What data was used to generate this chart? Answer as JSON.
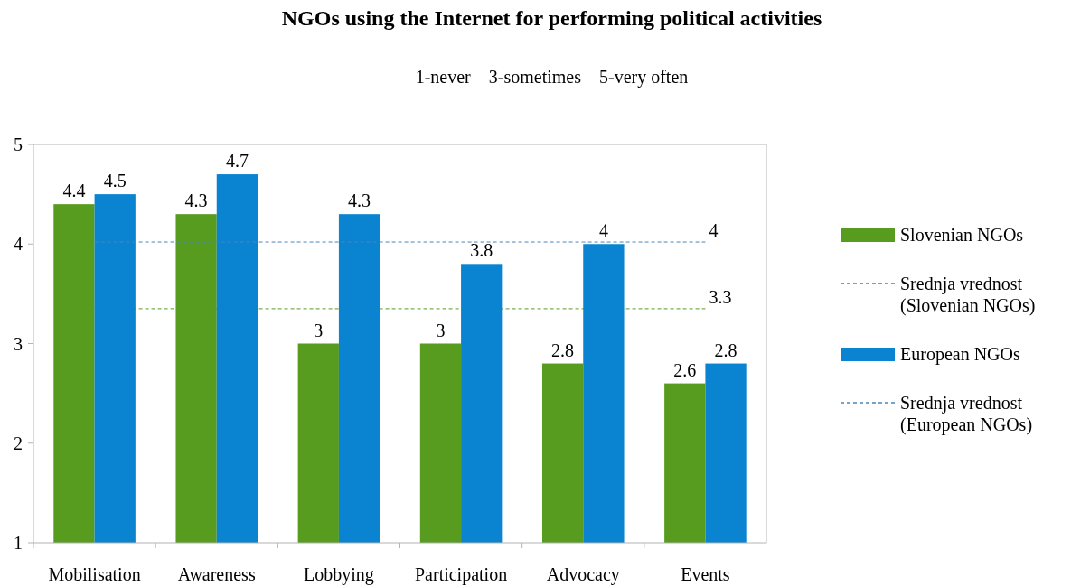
{
  "chart_data": {
    "type": "bar",
    "title": "NGOs using the Internet for performing political activities",
    "subtitle": "1-never    3-sometimes    5-very often",
    "categories": [
      "Mobilisation",
      "Awareness",
      "Lobbying",
      "Participation",
      "Advocacy",
      "Events"
    ],
    "series": [
      {
        "name": "Slovenian NGOs",
        "color": "#579b1f",
        "values": [
          4.4,
          4.3,
          3,
          3,
          2.8,
          2.6
        ]
      },
      {
        "name": "Srednja vrednost (Slovenian NGOs)",
        "type": "line",
        "color": "#579b1f",
        "line_style": "dashed",
        "values": [
          3.35,
          3.35,
          3.35,
          3.35,
          3.35,
          3.35
        ],
        "value_labels": [
          null,
          null,
          null,
          null,
          null,
          "3.3"
        ]
      },
      {
        "name": "European NGOs",
        "color": "#0a84d0",
        "values": [
          4.5,
          4.7,
          4.3,
          3.8,
          4,
          2.8
        ]
      },
      {
        "name": "Srednja vrednost (European NGOs)",
        "type": "line",
        "color": "#4a86b8",
        "line_style": "dashed",
        "values": [
          4.02,
          4.02,
          4.02,
          4.02,
          4.02,
          4.02
        ],
        "value_labels": [
          null,
          null,
          null,
          null,
          null,
          "4"
        ]
      }
    ],
    "ylim": [
      1,
      5
    ],
    "yticks": [
      1,
      2,
      3,
      4,
      5
    ],
    "grid": false,
    "legend": "right",
    "data_labels": true
  }
}
